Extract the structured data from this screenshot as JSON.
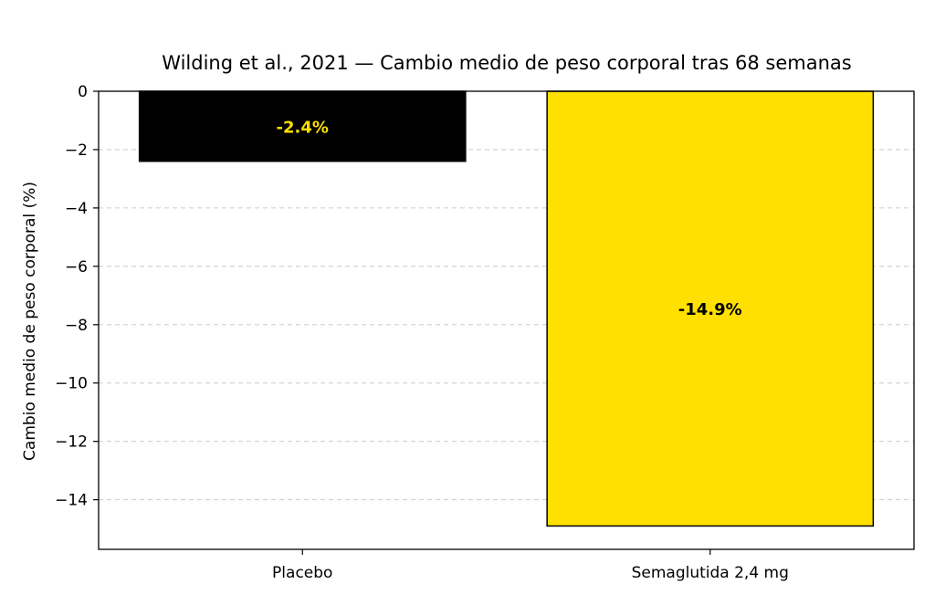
{
  "chart_data": {
    "type": "bar",
    "title": "Wilding et al., 2021 — Cambio medio de peso corporal tras 68 semanas",
    "xlabel": "",
    "ylabel": "Cambio medio de peso corporal (%)",
    "categories": [
      "Placebo",
      "Semaglutida 2,4 mg"
    ],
    "values": [
      -2.4,
      -14.9
    ],
    "data_labels": [
      "-2.4%",
      "-14.9%"
    ],
    "bar_colors": [
      "#000000",
      "#FFE000"
    ],
    "data_label_colors": [
      "#FFE000",
      "#000000"
    ],
    "ylim": [
      -15.7,
      0
    ],
    "yticks": [
      0,
      -2,
      -4,
      -6,
      -8,
      -10,
      -12,
      -14
    ],
    "ytick_labels": [
      "0",
      "−2",
      "−4",
      "−6",
      "−8",
      "−10",
      "−12",
      "−14"
    ],
    "grid": "y-dashed",
    "legend": "none"
  }
}
